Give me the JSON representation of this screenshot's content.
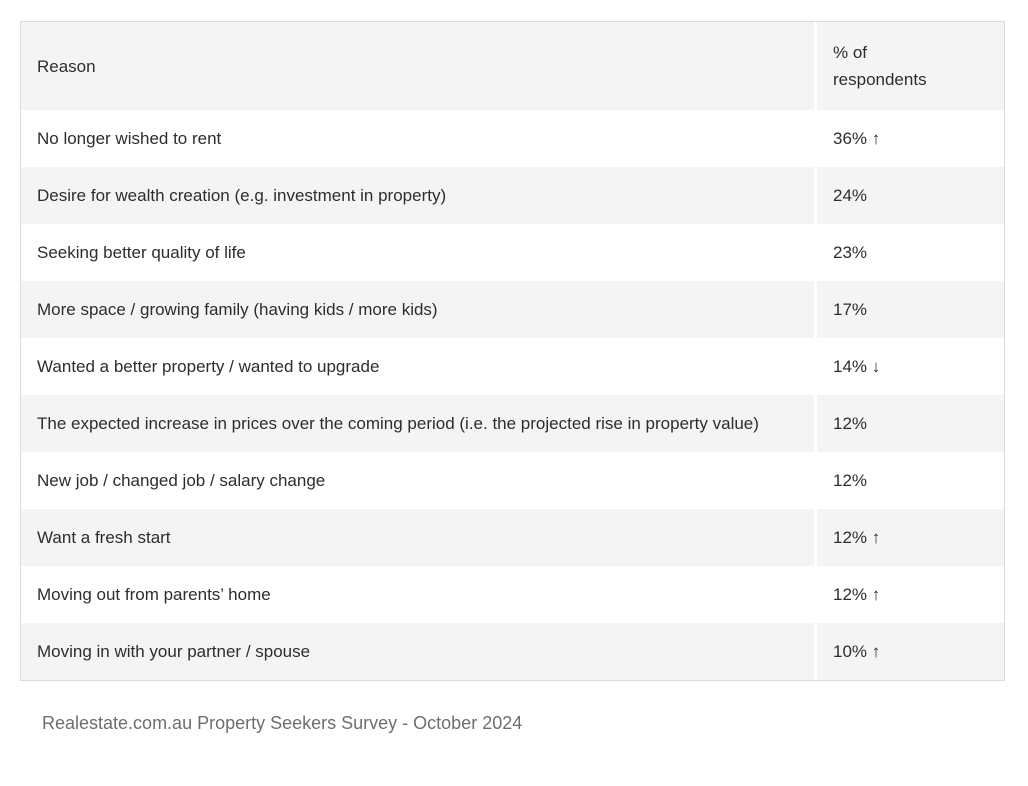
{
  "chart_data": {
    "type": "table",
    "columns": [
      "Reason",
      "% of respondents"
    ],
    "rows": [
      {
        "reason": "No longer wished to rent",
        "percent": 36,
        "trend": "up",
        "display": "36% ↑"
      },
      {
        "reason": "Desire for wealth creation (e.g. investment in property)",
        "percent": 24,
        "trend": null,
        "display": "24%"
      },
      {
        "reason": "Seeking better quality of life",
        "percent": 23,
        "trend": null,
        "display": "23%"
      },
      {
        "reason": "More space / growing family (having kids / more kids)",
        "percent": 17,
        "trend": null,
        "display": "17%"
      },
      {
        "reason": "Wanted a better property / wanted to upgrade",
        "percent": 14,
        "trend": "down",
        "display": "14% ↓"
      },
      {
        "reason": "The expected increase in prices over the coming period (i.e. the projected rise in property value)",
        "percent": 12,
        "trend": null,
        "display": "12%"
      },
      {
        "reason": "New job / changed job / salary change",
        "percent": 12,
        "trend": null,
        "display": "12%"
      },
      {
        "reason": "Want a fresh start",
        "percent": 12,
        "trend": "up",
        "display": "12% ↑"
      },
      {
        "reason": "Moving out from parents’ home",
        "percent": 12,
        "trend": "up",
        "display": "12% ↑"
      },
      {
        "reason": "Moving in with your partner / spouse",
        "percent": 10,
        "trend": "up",
        "display": "10% ↑"
      }
    ],
    "source": "Realestate.com.au Property Seekers Survey - October 2024",
    "layout": {
      "striped_rows": true,
      "header_background": "#f4f4f4",
      "stripe_background": "#f4f4f4",
      "row_background": "#ffffff"
    }
  },
  "colors": {
    "stripe": "#f4f4f4",
    "border": "#dcdcdc",
    "text": "#2d2d2d",
    "caption_text": "#6e6e6e",
    "page_background": "#ffffff"
  }
}
